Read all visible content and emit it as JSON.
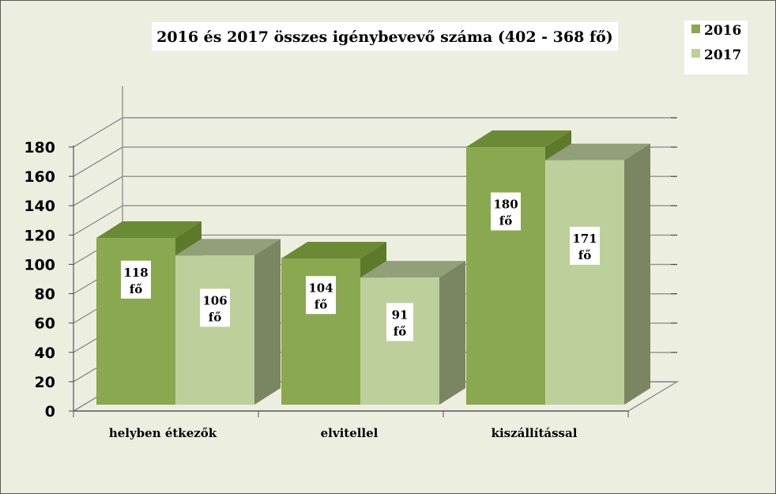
{
  "chart_data": {
    "type": "bar",
    "title": "2016 és 2017 összes igénybevevő  száma (402 - 368 fő)",
    "categories": [
      "helyben étkezők",
      "elvitellel",
      "kiszállítással"
    ],
    "series": [
      {
        "name": "2016",
        "values": [
          118,
          104,
          180
        ],
        "labels": [
          "118 fő",
          "104 fő",
          "180 fő"
        ],
        "color": "#8aa84f"
      },
      {
        "name": "2017",
        "values": [
          106,
          91,
          171
        ],
        "labels": [
          "106 fő",
          "91 fő",
          "171 fő"
        ],
        "color": "#bdd09b"
      }
    ],
    "ylim": [
      0,
      180
    ],
    "yticks": [
      0,
      20,
      40,
      60,
      80,
      100,
      120,
      140,
      160,
      180
    ],
    "grid": true,
    "legend": "top-right",
    "three_d": true
  }
}
